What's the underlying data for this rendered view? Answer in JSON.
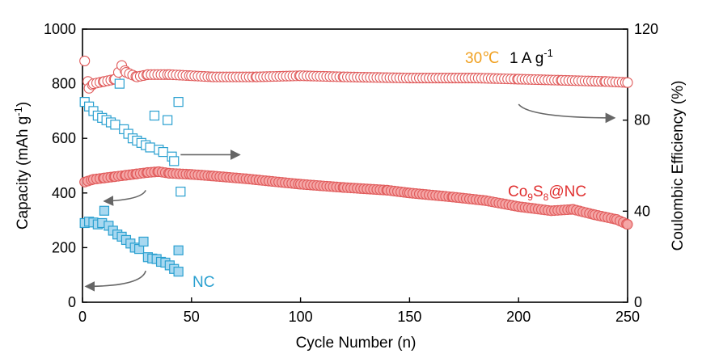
{
  "chart_data": {
    "type": "scatter",
    "xlabel": "Cycle Number (n)",
    "ylabel_left": "Capacity (mAh g⁻¹)",
    "ylabel_left_parts": {
      "main": "Capacity (mAh g",
      "sup": "-1",
      "end": ")"
    },
    "ylabel_right": "Coulombic Efficiency (%)",
    "xlim": [
      0,
      250
    ],
    "ylim_left": [
      0,
      1000
    ],
    "ylim_right": [
      0,
      120
    ],
    "x_ticks": [
      0,
      50,
      100,
      150,
      200,
      250
    ],
    "y_left_ticks": [
      0,
      200,
      400,
      600,
      800,
      1000
    ],
    "y_right_ticks": [
      0,
      40,
      80,
      120
    ],
    "annotations": {
      "temperature": "30℃",
      "rate_main": "1 A g",
      "rate_sup": "-1",
      "co9s8_prefix": "Co",
      "co9s8_sub1": "9",
      "co9s8_mid": "S",
      "co9s8_sub2": "8",
      "co9s8_suffix": "@NC",
      "nc_label": "NC"
    },
    "colors": {
      "co9s8_fill": "#f4a6a6",
      "co9s8_edge": "#e05a5a",
      "nc_fill": "#a8d8f0",
      "nc_edge": "#2aa0d0",
      "arrow": "#666666",
      "temperature": "#f0a020",
      "co9s8_label": "#e03030",
      "nc_label": "#2aa0d0"
    },
    "series": [
      {
        "name": "Co9S8@NC capacity",
        "axis": "left",
        "marker": "circle",
        "style": "filled",
        "x": [
          1,
          5,
          10,
          15,
          20,
          25,
          30,
          35,
          40,
          50,
          60,
          75,
          90,
          100,
          120,
          140,
          150,
          170,
          185,
          200,
          215,
          225,
          235,
          245,
          250
        ],
        "y": [
          440,
          450,
          455,
          460,
          465,
          470,
          475,
          478,
          472,
          468,
          462,
          452,
          440,
          432,
          420,
          410,
          400,
          385,
          372,
          350,
          335,
          340,
          320,
          303,
          285
        ]
      },
      {
        "name": "Co9S8@NC coulombic efficiency",
        "axis": "right",
        "marker": "circle",
        "style": "open",
        "x": [
          1,
          3,
          5,
          10,
          15,
          18,
          20,
          25,
          30,
          40,
          50,
          60,
          80,
          100,
          120,
          150,
          180,
          200,
          220,
          240,
          250
        ],
        "y": [
          106,
          94,
          96,
          97,
          98,
          104,
          101,
          99,
          100,
          100,
          99.5,
          99,
          99,
          99.5,
          99,
          98.5,
          98.5,
          98,
          97.5,
          97,
          96.5
        ]
      },
      {
        "name": "NC capacity",
        "axis": "left",
        "marker": "square",
        "style": "filled",
        "x": [
          1,
          3,
          5,
          7,
          9,
          10,
          12,
          14,
          16,
          18,
          20,
          22,
          24,
          26,
          28,
          30,
          32,
          34,
          36,
          38,
          40,
          42,
          44
        ],
        "y": [
          290,
          295,
          292,
          285,
          290,
          335,
          280,
          262,
          248,
          240,
          228,
          215,
          200,
          195,
          222,
          165,
          160,
          158,
          148,
          145,
          135,
          122,
          112
        ]
      },
      {
        "name": "NC coulombic efficiency",
        "axis": "right",
        "marker": "square",
        "style": "open",
        "x": [
          1,
          3,
          5,
          7,
          9,
          11,
          13,
          15,
          17,
          19,
          21,
          23,
          25,
          27,
          29,
          31,
          33,
          35,
          37,
          39,
          41,
          42,
          44
        ],
        "y": [
          88,
          86,
          84,
          82,
          81,
          80,
          79,
          78,
          96,
          76,
          74,
          72,
          71,
          70,
          69,
          68,
          82,
          67,
          66,
          80,
          64,
          62,
          88
        ]
      }
    ],
    "extra_points": {
      "nc_outliers": [
        {
          "x": 45,
          "y": 405,
          "axis": "left",
          "style": "open"
        },
        {
          "x": 44,
          "y": 190,
          "axis": "left",
          "style": "filled"
        }
      ]
    }
  }
}
